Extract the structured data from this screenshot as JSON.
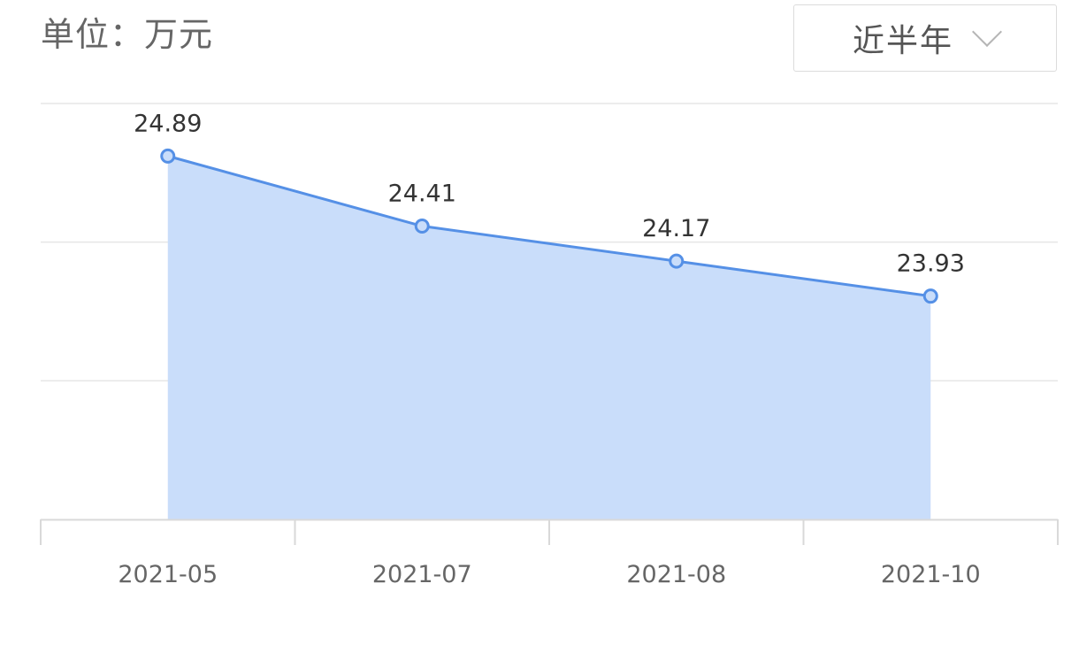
{
  "header": {
    "unit_label": "单位：万元"
  },
  "period_select": {
    "selected": "近半年",
    "icon": "chevron-down-icon"
  },
  "colors": {
    "line": "#5590e6",
    "area": "#c9ddfa",
    "grid": "#e6e6e6",
    "axis": "#d9d9d9",
    "point_fill": "#c9ddfa"
  },
  "chart_data": {
    "type": "area",
    "categories": [
      "2021-05",
      "2021-07",
      "2021-08",
      "2021-10"
    ],
    "values": [
      24.89,
      24.41,
      24.17,
      23.93
    ],
    "data_labels": [
      "24.89",
      "24.41",
      "24.17",
      "23.93"
    ],
    "ylim": [
      22.4,
      25.25
    ],
    "grid": true,
    "legend": "none"
  }
}
